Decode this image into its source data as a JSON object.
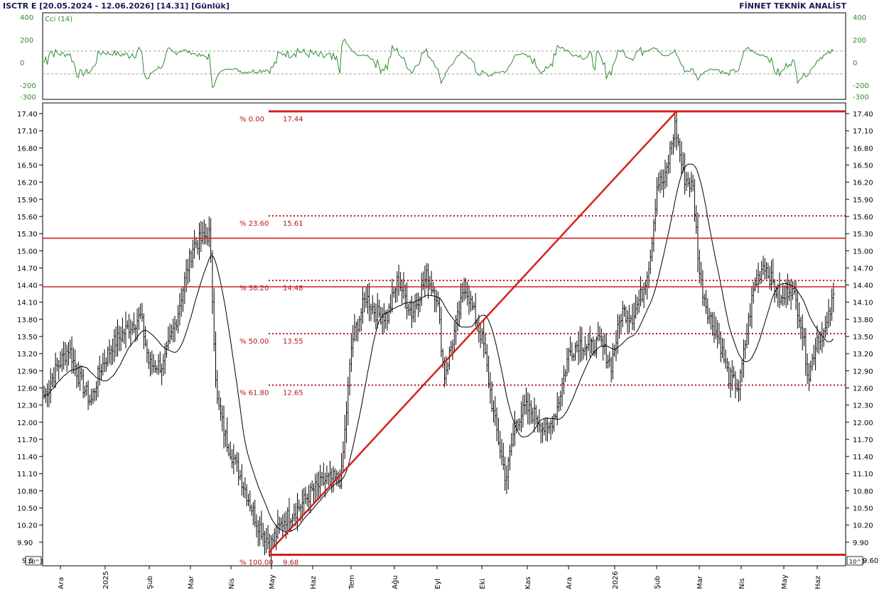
{
  "header": {
    "left": "ISCTR E  [20.05.2024 - 12.06.2026]  [14.31]  [Günlük]",
    "right": "FİNNET TEKNİK ANALİST"
  },
  "cci_panel": {
    "label": "Cci (14)",
    "ticks": [
      "400",
      "200",
      "0",
      "-200",
      "-300"
    ],
    "ticks_right": [
      "400",
      "200",
      "0",
      "-200",
      "-300"
    ],
    "levels": [
      100,
      -100
    ],
    "color": "#2e8b2e"
  },
  "price_panel": {
    "ticks": [
      "17.40",
      "17.10",
      "16.80",
      "16.50",
      "16.20",
      "15.90",
      "15.60",
      "15.30",
      "15.00",
      "14.70",
      "14.40",
      "14.10",
      "13.80",
      "13.50",
      "13.20",
      "12.90",
      "12.60",
      "12.30",
      "12.00",
      "11.70",
      "11.40",
      "11.10",
      "10.80",
      "10.50",
      "10.20",
      "9.90",
      "9.60"
    ],
    "axis_badge_left": "10^3",
    "axis_badge_right": "10^3",
    "bottom_left_tick": "9.6",
    "colors": {
      "bars": "#000000",
      "sr_lines": "#d42020",
      "fib": "#b3181f"
    }
  },
  "months": [
    "Ara",
    "2025",
    "Şub",
    "Mar",
    "Nis",
    "May",
    "Haz",
    "Tem",
    "Ağu",
    "Eyl",
    "Eki",
    "Kas",
    "Ara",
    "2026",
    "Şub",
    "Mar",
    "Nis",
    "May",
    "Haz"
  ],
  "fib_levels": [
    {
      "pct": "% 0.00",
      "val": "17.44"
    },
    {
      "pct": "% 23.60",
      "val": "15.61"
    },
    {
      "pct": "% 38.20",
      "val": "14.48"
    },
    {
      "pct": "% 50.00",
      "val": "13.55"
    },
    {
      "pct": "% 61.80",
      "val": "12.65"
    },
    {
      "pct": "% 100.00",
      "val": "9.68"
    }
  ],
  "chart_data": {
    "type": "ohlc",
    "title": "ISCTR E  [20.05.2024 - 12.06.2026]  [14.31]  [Günlük]",
    "y_range": [
      9.6,
      17.55
    ],
    "horizontal_lines": [
      15.22,
      14.37
    ],
    "trend_line": {
      "from": [
        9.72,
        "May"
      ],
      "to": [
        17.44,
        "Şub"
      ]
    },
    "anchors": [
      {
        "x": 62,
        "p": 12.45
      },
      {
        "x": 80,
        "p": 12.95
      },
      {
        "x": 97,
        "p": 13.3
      },
      {
        "x": 112,
        "p": 12.75
      },
      {
        "x": 128,
        "p": 12.35
      },
      {
        "x": 140,
        "p": 12.9
      },
      {
        "x": 158,
        "p": 13.35
      },
      {
        "x": 180,
        "p": 13.65
      },
      {
        "x": 198,
        "p": 13.85
      },
      {
        "x": 210,
        "p": 13.0
      },
      {
        "x": 230,
        "p": 13.0
      },
      {
        "x": 248,
        "p": 13.8
      },
      {
        "x": 262,
        "p": 14.6
      },
      {
        "x": 272,
        "p": 15.1
      },
      {
        "x": 295,
        "p": 15.3
      },
      {
        "x": 305,
        "p": 12.4
      },
      {
        "x": 318,
        "p": 11.7
      },
      {
        "x": 340,
        "p": 11.0
      },
      {
        "x": 360,
        "p": 10.3
      },
      {
        "x": 380,
        "p": 9.85
      },
      {
        "x": 400,
        "p": 10.3
      },
      {
        "x": 420,
        "p": 10.5
      },
      {
        "x": 440,
        "p": 10.8
      },
      {
        "x": 460,
        "p": 11.0
      },
      {
        "x": 480,
        "p": 11.0
      },
      {
        "x": 495,
        "p": 13.4
      },
      {
        "x": 515,
        "p": 14.2
      },
      {
        "x": 530,
        "p": 13.9
      },
      {
        "x": 545,
        "p": 13.85
      },
      {
        "x": 560,
        "p": 14.5
      },
      {
        "x": 580,
        "p": 13.9
      },
      {
        "x": 600,
        "p": 14.55
      },
      {
        "x": 615,
        "p": 14.2
      },
      {
        "x": 625,
        "p": 12.8
      },
      {
        "x": 640,
        "p": 13.6
      },
      {
        "x": 655,
        "p": 14.4
      },
      {
        "x": 668,
        "p": 13.85
      },
      {
        "x": 680,
        "p": 13.4
      },
      {
        "x": 695,
        "p": 12.1
      },
      {
        "x": 712,
        "p": 11.0
      },
      {
        "x": 725,
        "p": 12.0
      },
      {
        "x": 740,
        "p": 12.25
      },
      {
        "x": 755,
        "p": 12.1
      },
      {
        "x": 770,
        "p": 11.8
      },
      {
        "x": 785,
        "p": 12.3
      },
      {
        "x": 800,
        "p": 13.2
      },
      {
        "x": 815,
        "p": 13.4
      },
      {
        "x": 830,
        "p": 13.3
      },
      {
        "x": 845,
        "p": 13.4
      },
      {
        "x": 860,
        "p": 13.0
      },
      {
        "x": 875,
        "p": 13.95
      },
      {
        "x": 890,
        "p": 13.85
      },
      {
        "x": 905,
        "p": 14.3
      },
      {
        "x": 915,
        "p": 14.9
      },
      {
        "x": 925,
        "p": 16.2
      },
      {
        "x": 935,
        "p": 16.2
      },
      {
        "x": 950,
        "p": 17.2
      },
      {
        "x": 962,
        "p": 16.3
      },
      {
        "x": 975,
        "p": 16.1
      },
      {
        "x": 985,
        "p": 14.5
      },
      {
        "x": 997,
        "p": 13.9
      },
      {
        "x": 1012,
        "p": 13.45
      },
      {
        "x": 1025,
        "p": 12.8
      },
      {
        "x": 1040,
        "p": 12.6
      },
      {
        "x": 1050,
        "p": 13.5
      },
      {
        "x": 1060,
        "p": 14.3
      },
      {
        "x": 1075,
        "p": 14.8
      },
      {
        "x": 1085,
        "p": 14.5
      },
      {
        "x": 1100,
        "p": 14.1
      },
      {
        "x": 1112,
        "p": 14.4
      },
      {
        "x": 1125,
        "p": 13.9
      },
      {
        "x": 1138,
        "p": 12.8
      },
      {
        "x": 1150,
        "p": 13.5
      },
      {
        "x": 1162,
        "p": 13.6
      },
      {
        "x": 1175,
        "p": 14.31
      }
    ]
  }
}
